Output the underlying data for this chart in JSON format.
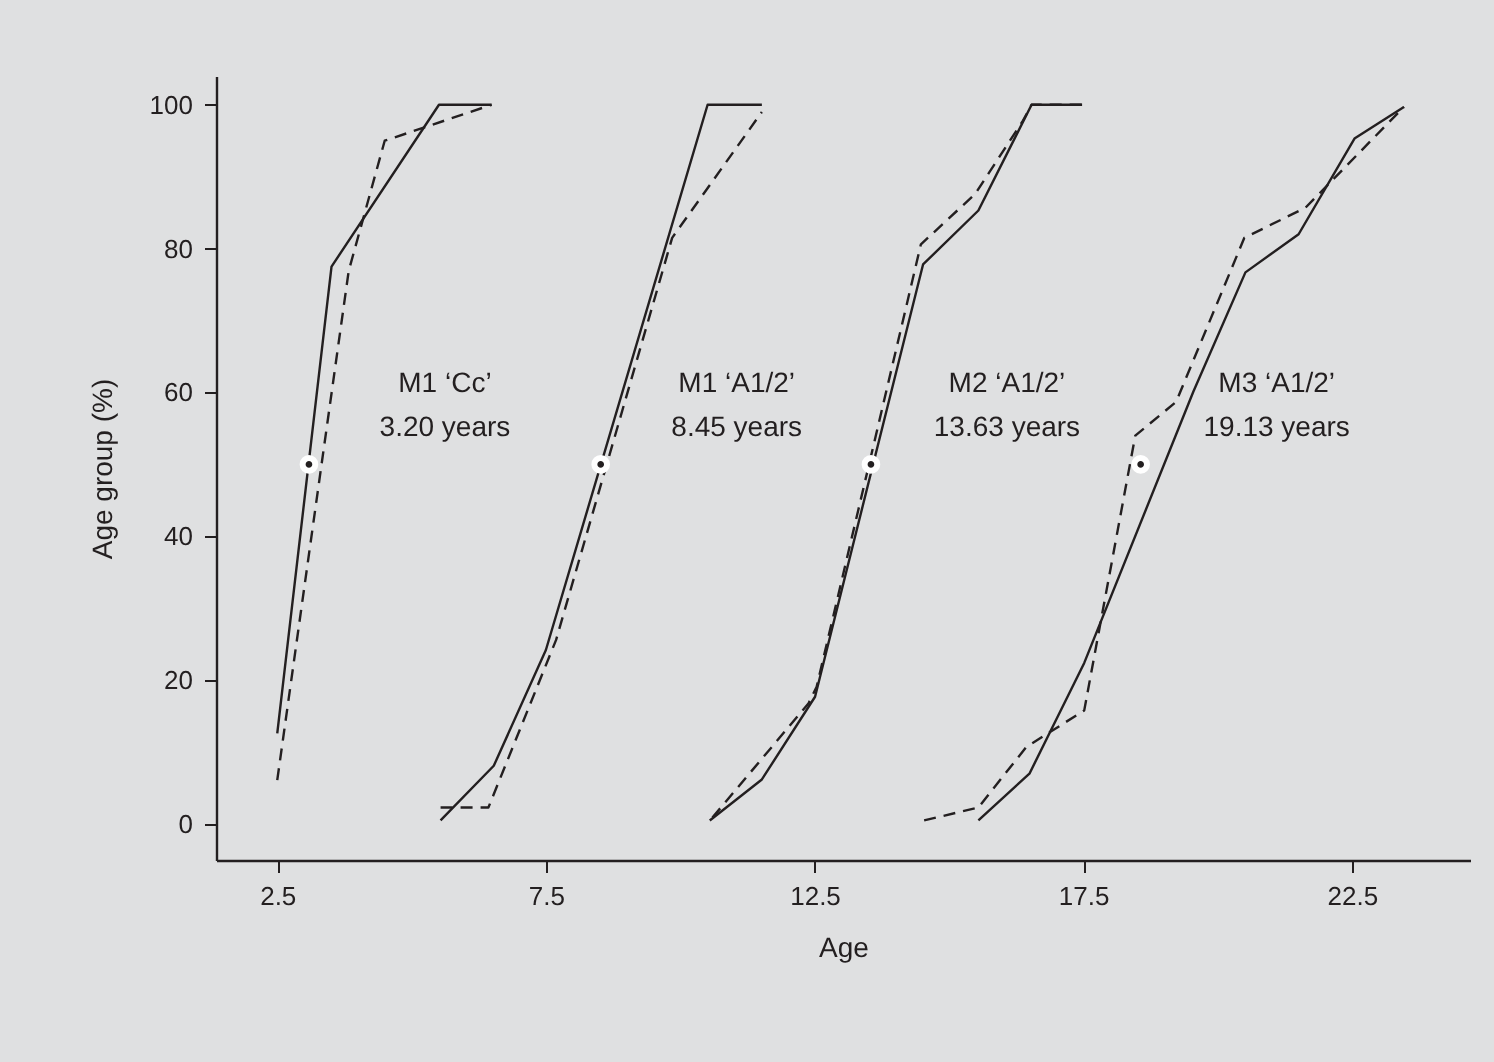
{
  "chart_data": {
    "type": "line",
    "xlabel": "Age",
    "ylabel": "Age group (%)",
    "xlim": [
      1.36,
      24.7
    ],
    "ylim": [
      -5,
      104
    ],
    "xticks": [
      2.5,
      7.5,
      12.5,
      17.5,
      22.5
    ],
    "yticks": [
      0,
      20,
      40,
      60,
      80,
      100
    ],
    "grid": false,
    "series": [
      {
        "color": "#231f20",
        "line_style": "solid",
        "marker": "none",
        "x": [
          2.5,
          3.51,
          5.51,
          6.49
        ],
        "values": [
          12.6,
          77.5,
          100,
          100
        ]
      },
      {
        "color": "#231f20",
        "line_style": "dashed",
        "marker": "none",
        "x": [
          2.5,
          3.83,
          4.5,
          6.49
        ],
        "values": [
          6.1,
          76.9,
          95,
          100
        ]
      },
      {
        "color": "#231f20",
        "line_style": "solid",
        "marker": "none",
        "x": [
          5.54,
          6.53,
          7.5,
          10.51,
          11.52
        ],
        "values": [
          0.5,
          8.1,
          24.2,
          100,
          100
        ]
      },
      {
        "color": "#231f20",
        "line_style": "dashed",
        "marker": "none",
        "x": [
          5.54,
          6.43,
          7.69,
          9.85,
          11.52
        ],
        "values": [
          2.3,
          2.3,
          25.6,
          81.5,
          99
        ]
      },
      {
        "color": "#231f20",
        "line_style": "solid",
        "marker": "none",
        "x": [
          10.55,
          11.52,
          12.51,
          14.52,
          15.55,
          16.54,
          17.48
        ],
        "values": [
          0.5,
          6.2,
          17.7,
          77.8,
          85.3,
          100,
          100
        ]
      },
      {
        "color": "#231f20",
        "line_style": "dashed",
        "marker": "none",
        "x": [
          10.6,
          12.39,
          12.54,
          14.48,
          15.49,
          16.38,
          16.54,
          17.48
        ],
        "values": [
          0.9,
          16.8,
          19.1,
          80.6,
          87.6,
          97.8,
          100,
          100
        ]
      },
      {
        "color": "#231f20",
        "line_style": "solid",
        "marker": "none",
        "x": [
          15.55,
          16.5,
          17.52,
          19.55,
          20.52,
          21.51,
          22.55,
          23.47
        ],
        "values": [
          0.5,
          7,
          22.4,
          60.1,
          76.7,
          82,
          95.3,
          99.7
        ]
      },
      {
        "color": "#231f20",
        "line_style": "dashed",
        "marker": "none",
        "x": [
          14.54,
          15.55,
          16.44,
          17.52,
          18.47,
          19.23,
          20.5,
          21.64,
          23.47
        ],
        "values": [
          0.5,
          2.3,
          10.7,
          15.8,
          54,
          58.7,
          81.5,
          85.7,
          99.7
        ]
      },
      {
        "type": "scatter",
        "color": "#231f20",
        "marker": "circle",
        "x": [
          3.09,
          8.52,
          13.55,
          18.57
        ],
        "values": [
          50,
          50,
          50,
          50
        ]
      }
    ],
    "annotations": [
      "M1 ‘Cc’\n3.20 years",
      "M1 ‘A1/2’\n8.45 years",
      "M2 ‘A1/2’\n13.63 years",
      "M3 ‘A1/2’\n19.13 years"
    ]
  }
}
